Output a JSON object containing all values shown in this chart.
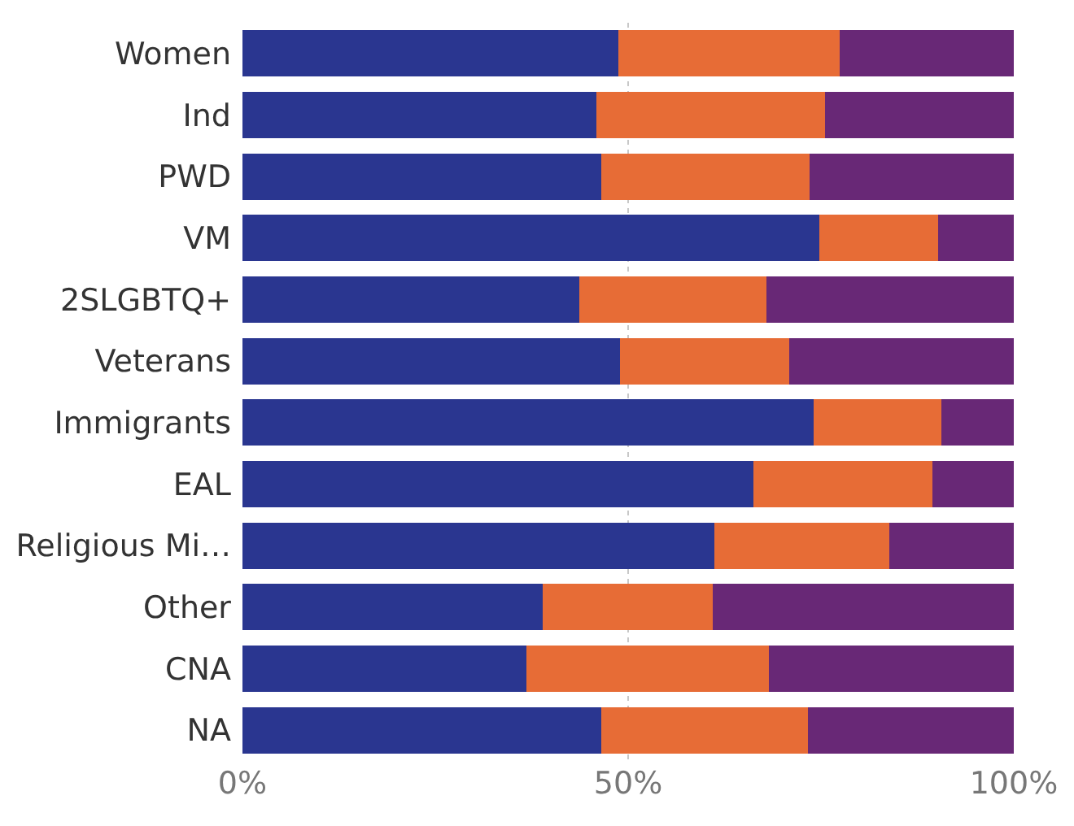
{
  "chart_data": {
    "type": "bar",
    "orientation": "horizontal",
    "stacked": true,
    "categories": [
      "Women",
      "Ind",
      "PWD",
      "VM",
      "2SLGBTQ+",
      "Veterans",
      "Immigrants",
      "EAL",
      "Religious Mi…",
      "Other",
      "CNA",
      "NA"
    ],
    "series": [
      {
        "color": "#2a3690",
        "values": [
          48.7,
          45.9,
          46.5,
          74.8,
          43.7,
          48.9,
          74.0,
          66.2,
          61.2,
          38.9,
          36.8,
          46.5
        ]
      },
      {
        "color": "#e76c36",
        "values": [
          28.7,
          29.6,
          27.0,
          15.4,
          24.2,
          22.0,
          16.6,
          23.3,
          22.7,
          22.1,
          31.5,
          26.8
        ]
      },
      {
        "color": "#682876",
        "values": [
          22.6,
          24.5,
          26.5,
          9.8,
          32.1,
          29.1,
          9.4,
          10.5,
          16.1,
          39.0,
          31.7,
          26.7
        ]
      }
    ],
    "xlim": [
      0,
      100
    ],
    "xticks": [
      {
        "value": 0,
        "label": "0%"
      },
      {
        "value": 50,
        "label": "50%"
      },
      {
        "value": 100,
        "label": "100%"
      }
    ],
    "grid": "x"
  }
}
